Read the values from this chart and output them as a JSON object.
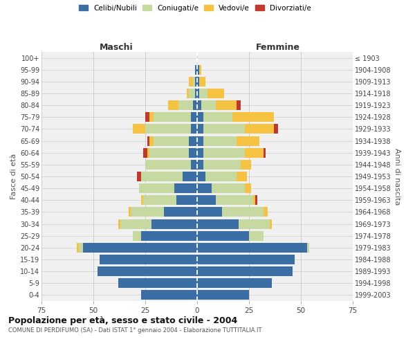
{
  "age_groups": [
    "0-4",
    "5-9",
    "10-14",
    "15-19",
    "20-24",
    "25-29",
    "30-34",
    "35-39",
    "40-44",
    "45-49",
    "50-54",
    "55-59",
    "60-64",
    "65-69",
    "70-74",
    "75-79",
    "80-84",
    "85-89",
    "90-94",
    "95-99",
    "100+"
  ],
  "birth_years": [
    "1999-2003",
    "1994-1998",
    "1989-1993",
    "1984-1988",
    "1979-1983",
    "1974-1978",
    "1969-1973",
    "1964-1968",
    "1959-1963",
    "1954-1958",
    "1949-1953",
    "1944-1948",
    "1939-1943",
    "1934-1938",
    "1929-1933",
    "1924-1928",
    "1919-1923",
    "1914-1918",
    "1909-1913",
    "1904-1908",
    "≤ 1903"
  ],
  "maschi": {
    "celibi": [
      27,
      38,
      48,
      47,
      55,
      27,
      22,
      16,
      10,
      11,
      7,
      3,
      4,
      4,
      3,
      3,
      2,
      1,
      1,
      1,
      0
    ],
    "coniugati": [
      0,
      0,
      0,
      0,
      2,
      4,
      15,
      16,
      16,
      17,
      20,
      22,
      19,
      17,
      22,
      18,
      7,
      3,
      1,
      0,
      0
    ],
    "vedovi": [
      0,
      0,
      0,
      0,
      1,
      0,
      1,
      1,
      1,
      0,
      0,
      0,
      1,
      2,
      6,
      2,
      5,
      1,
      2,
      0,
      0
    ],
    "divorziati": [
      0,
      0,
      0,
      0,
      0,
      0,
      0,
      0,
      0,
      0,
      2,
      0,
      2,
      1,
      0,
      2,
      0,
      0,
      0,
      0,
      0
    ]
  },
  "femmine": {
    "nubili": [
      25,
      36,
      46,
      47,
      53,
      25,
      20,
      12,
      9,
      7,
      4,
      3,
      3,
      3,
      3,
      3,
      2,
      1,
      1,
      1,
      0
    ],
    "coniugate": [
      0,
      0,
      0,
      0,
      1,
      7,
      15,
      20,
      18,
      16,
      15,
      18,
      20,
      16,
      20,
      14,
      7,
      4,
      0,
      0,
      0
    ],
    "vedove": [
      0,
      0,
      0,
      0,
      0,
      0,
      1,
      2,
      1,
      3,
      5,
      5,
      9,
      11,
      14,
      20,
      10,
      8,
      3,
      1,
      0
    ],
    "divorziate": [
      0,
      0,
      0,
      0,
      0,
      0,
      0,
      0,
      1,
      0,
      0,
      0,
      1,
      0,
      2,
      0,
      2,
      0,
      0,
      0,
      0
    ]
  },
  "colors": {
    "celibi": "#3a6ea5",
    "coniugati": "#c5d9a0",
    "vedovi": "#f5c242",
    "divorziati": "#c0392b"
  },
  "xlim": 75,
  "title": "Popolazione per età, sesso e stato civile - 2004",
  "subtitle": "COMUNE DI PERDIFUMO (SA) - Dati ISTAT 1° gennaio 2004 - Elaborazione TUTTITALIA.IT",
  "ylabel_left": "Fasce di età",
  "ylabel_right": "Anni di nascita",
  "xlabel_left": "Maschi",
  "xlabel_right": "Femmine",
  "bg_color": "#ffffff",
  "plot_bg_color": "#f0f0f0"
}
